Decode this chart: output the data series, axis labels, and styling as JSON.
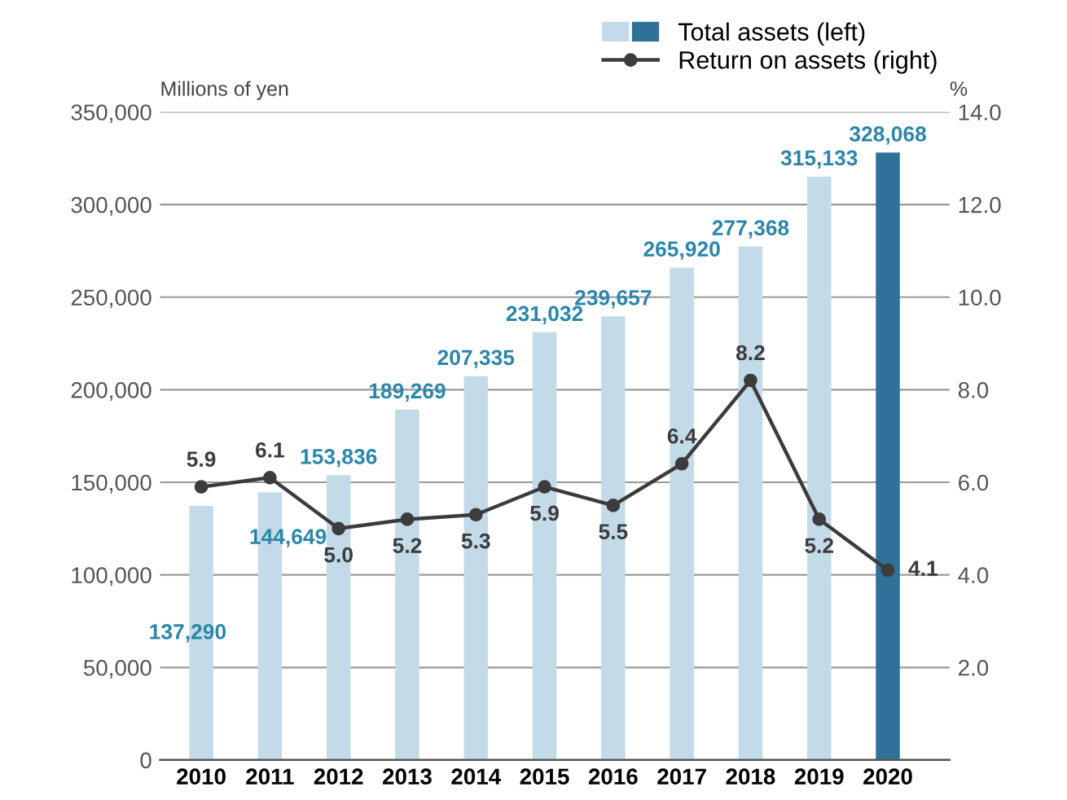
{
  "chart_data": {
    "type": "bar",
    "categories": [
      "2010",
      "2011",
      "2012",
      "2013",
      "2014",
      "2015",
      "2016",
      "2017",
      "2018",
      "2019",
      "2020"
    ],
    "ylabel": "Millions of yen",
    "y2label": "%",
    "series": [
      {
        "name": "Total assets (left)",
        "colors": [
          "#c3dbe9",
          "#c3dbe9",
          "#c3dbe9",
          "#c3dbe9",
          "#c3dbe9",
          "#c3dbe9",
          "#c3dbe9",
          "#c3dbe9",
          "#c3dbe9",
          "#c3dbe9",
          "#2f7198"
        ],
        "values": [
          137290,
          144649,
          153836,
          189269,
          207335,
          231032,
          239657,
          265920,
          277368,
          315133,
          328068
        ],
        "value_labels": [
          "137,290",
          "144,649",
          "153,836",
          "189,269",
          "207,335",
          "231,032",
          "239,657",
          "265,920",
          "277,368",
          "315,133",
          "328,068"
        ]
      },
      {
        "name": "Return on assets (right)",
        "type": "line",
        "axis": "y2",
        "color": "#3c3c3c",
        "marker": "circle",
        "line_style": "solid",
        "values": [
          5.9,
          6.1,
          5.0,
          5.2,
          5.3,
          5.9,
          5.5,
          6.4,
          8.2,
          5.2,
          4.1
        ],
        "value_labels": [
          "5.9",
          "6.1",
          "5.0",
          "5.2",
          "5.3",
          "5.9",
          "5.5",
          "6.4",
          "8.2",
          "5.2",
          "4.1"
        ]
      }
    ],
    "ylim": [
      0,
      350000
    ],
    "yticks": [
      {
        "value": 0,
        "label": "0"
      },
      {
        "value": 50000,
        "label": "50,000"
      },
      {
        "value": 100000,
        "label": "100,000"
      },
      {
        "value": 150000,
        "label": "150,000"
      },
      {
        "value": 200000,
        "label": "200,000"
      },
      {
        "value": 250000,
        "label": "250,000"
      },
      {
        "value": 300000,
        "label": "300,000"
      },
      {
        "value": 350000,
        "label": "350,000"
      }
    ],
    "y2lim": [
      0,
      14
    ],
    "y2ticks": [
      {
        "value": 0,
        "label": null
      },
      {
        "value": 2,
        "label": "2.0"
      },
      {
        "value": 4,
        "label": "4.0"
      },
      {
        "value": 6,
        "label": "6.0"
      },
      {
        "value": 8,
        "label": "8.0"
      },
      {
        "value": 10,
        "label": "10.0"
      },
      {
        "value": 12,
        "label": "12.0"
      },
      {
        "value": 14,
        "label": "14.0"
      }
    ],
    "grid": "y",
    "legend": "top right"
  }
}
